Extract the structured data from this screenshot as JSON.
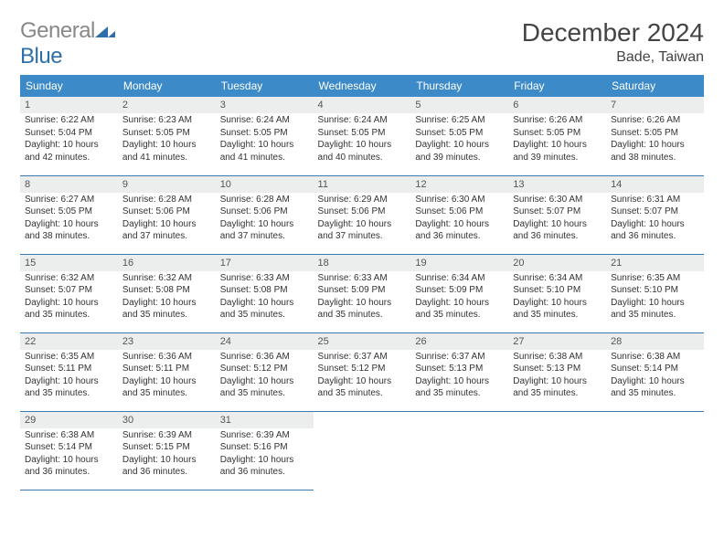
{
  "brand": {
    "part1": "General",
    "part2": "Blue"
  },
  "title": "December 2024",
  "location": "Bade, Taiwan",
  "colors": {
    "header_bg": "#3c8ac8",
    "daynum_bg": "#eceded",
    "border": "#3c79ad",
    "logo_blue": "#2f6fa8"
  },
  "weekdays": [
    "Sunday",
    "Monday",
    "Tuesday",
    "Wednesday",
    "Thursday",
    "Friday",
    "Saturday"
  ],
  "days": [
    {
      "n": "1",
      "sr": "6:22 AM",
      "ss": "5:04 PM",
      "dl": "10 hours and 42 minutes."
    },
    {
      "n": "2",
      "sr": "6:23 AM",
      "ss": "5:05 PM",
      "dl": "10 hours and 41 minutes."
    },
    {
      "n": "3",
      "sr": "6:24 AM",
      "ss": "5:05 PM",
      "dl": "10 hours and 41 minutes."
    },
    {
      "n": "4",
      "sr": "6:24 AM",
      "ss": "5:05 PM",
      "dl": "10 hours and 40 minutes."
    },
    {
      "n": "5",
      "sr": "6:25 AM",
      "ss": "5:05 PM",
      "dl": "10 hours and 39 minutes."
    },
    {
      "n": "6",
      "sr": "6:26 AM",
      "ss": "5:05 PM",
      "dl": "10 hours and 39 minutes."
    },
    {
      "n": "7",
      "sr": "6:26 AM",
      "ss": "5:05 PM",
      "dl": "10 hours and 38 minutes."
    },
    {
      "n": "8",
      "sr": "6:27 AM",
      "ss": "5:05 PM",
      "dl": "10 hours and 38 minutes."
    },
    {
      "n": "9",
      "sr": "6:28 AM",
      "ss": "5:06 PM",
      "dl": "10 hours and 37 minutes."
    },
    {
      "n": "10",
      "sr": "6:28 AM",
      "ss": "5:06 PM",
      "dl": "10 hours and 37 minutes."
    },
    {
      "n": "11",
      "sr": "6:29 AM",
      "ss": "5:06 PM",
      "dl": "10 hours and 37 minutes."
    },
    {
      "n": "12",
      "sr": "6:30 AM",
      "ss": "5:06 PM",
      "dl": "10 hours and 36 minutes."
    },
    {
      "n": "13",
      "sr": "6:30 AM",
      "ss": "5:07 PM",
      "dl": "10 hours and 36 minutes."
    },
    {
      "n": "14",
      "sr": "6:31 AM",
      "ss": "5:07 PM",
      "dl": "10 hours and 36 minutes."
    },
    {
      "n": "15",
      "sr": "6:32 AM",
      "ss": "5:07 PM",
      "dl": "10 hours and 35 minutes."
    },
    {
      "n": "16",
      "sr": "6:32 AM",
      "ss": "5:08 PM",
      "dl": "10 hours and 35 minutes."
    },
    {
      "n": "17",
      "sr": "6:33 AM",
      "ss": "5:08 PM",
      "dl": "10 hours and 35 minutes."
    },
    {
      "n": "18",
      "sr": "6:33 AM",
      "ss": "5:09 PM",
      "dl": "10 hours and 35 minutes."
    },
    {
      "n": "19",
      "sr": "6:34 AM",
      "ss": "5:09 PM",
      "dl": "10 hours and 35 minutes."
    },
    {
      "n": "20",
      "sr": "6:34 AM",
      "ss": "5:10 PM",
      "dl": "10 hours and 35 minutes."
    },
    {
      "n": "21",
      "sr": "6:35 AM",
      "ss": "5:10 PM",
      "dl": "10 hours and 35 minutes."
    },
    {
      "n": "22",
      "sr": "6:35 AM",
      "ss": "5:11 PM",
      "dl": "10 hours and 35 minutes."
    },
    {
      "n": "23",
      "sr": "6:36 AM",
      "ss": "5:11 PM",
      "dl": "10 hours and 35 minutes."
    },
    {
      "n": "24",
      "sr": "6:36 AM",
      "ss": "5:12 PM",
      "dl": "10 hours and 35 minutes."
    },
    {
      "n": "25",
      "sr": "6:37 AM",
      "ss": "5:12 PM",
      "dl": "10 hours and 35 minutes."
    },
    {
      "n": "26",
      "sr": "6:37 AM",
      "ss": "5:13 PM",
      "dl": "10 hours and 35 minutes."
    },
    {
      "n": "27",
      "sr": "6:38 AM",
      "ss": "5:13 PM",
      "dl": "10 hours and 35 minutes."
    },
    {
      "n": "28",
      "sr": "6:38 AM",
      "ss": "5:14 PM",
      "dl": "10 hours and 35 minutes."
    },
    {
      "n": "29",
      "sr": "6:38 AM",
      "ss": "5:14 PM",
      "dl": "10 hours and 36 minutes."
    },
    {
      "n": "30",
      "sr": "6:39 AM",
      "ss": "5:15 PM",
      "dl": "10 hours and 36 minutes."
    },
    {
      "n": "31",
      "sr": "6:39 AM",
      "ss": "5:16 PM",
      "dl": "10 hours and 36 minutes."
    }
  ],
  "labels": {
    "sunrise": "Sunrise:",
    "sunset": "Sunset:",
    "daylight": "Daylight:"
  },
  "start_weekday": 0,
  "grid_cols": 7
}
